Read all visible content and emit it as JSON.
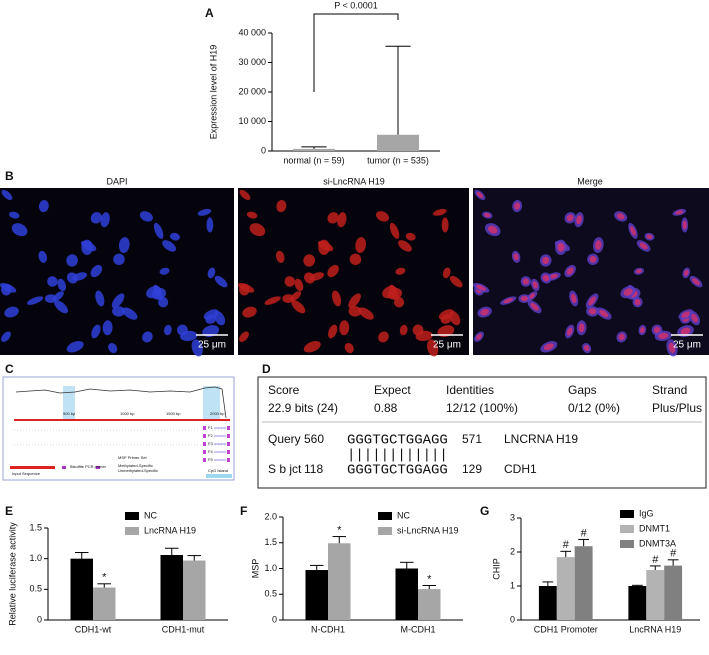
{
  "chart_data": [
    {
      "type": "bar",
      "panel": "A",
      "ylabel": "Expression level of H19",
      "annotation": "P < 0.0001",
      "categories": [
        "normal (n = 59)",
        "tumor (n = 535)"
      ],
      "series": [
        {
          "color": "#a6a6a6",
          "values": [
            700,
            5500
          ],
          "errors": [
            700,
            30000
          ]
        }
      ],
      "ylim": [
        0,
        40000
      ],
      "yticks": [
        0,
        {
          "value": 10000,
          "label": "10 000"
        },
        {
          "value": 20000,
          "label": "20 000"
        },
        {
          "value": 30000,
          "label": "30 000"
        },
        {
          "value": 40000,
          "label": "40 000"
        }
      ]
    },
    {
      "type": "bar",
      "panel": "E",
      "ylabel": "Relative luciferase activity",
      "categories": [
        "CDH1-wt",
        "CDH1-mut"
      ],
      "series": [
        {
          "name": "NC",
          "color": "#000000",
          "values": [
            1.0,
            1.06
          ],
          "errors": [
            0.1,
            0.11
          ]
        },
        {
          "name": "LncRNA H19",
          "color": "#a6a6a6",
          "values": [
            0.53,
            0.97
          ],
          "errors": [
            0.06,
            0.08
          ],
          "marks": [
            "*",
            null
          ]
        }
      ],
      "ylim": [
        0,
        1.5
      ],
      "yticks": [
        0,
        0.5,
        {
          "value": 1,
          "label": "1.0"
        },
        1.5
      ]
    },
    {
      "type": "bar",
      "panel": "F",
      "ylabel": "MSP",
      "categories": [
        "N-CDH1",
        "M-CDH1"
      ],
      "series": [
        {
          "name": "NC",
          "color": "#000000",
          "values": [
            0.97,
            1.0
          ],
          "errors": [
            0.09,
            0.12
          ]
        },
        {
          "name": "si-LncRNA H19",
          "color": "#a6a6a6",
          "values": [
            1.49,
            0.6
          ],
          "errors": [
            0.13,
            0.07
          ],
          "marks": [
            "*",
            "*"
          ]
        }
      ],
      "ylim": [
        0,
        2
      ],
      "yticks": [
        0,
        0.5,
        {
          "value": 1,
          "label": "1.0"
        },
        1.5,
        {
          "value": 2,
          "label": "2.0"
        }
      ]
    },
    {
      "type": "bar",
      "panel": "G",
      "ylabel": "CHIP",
      "categories": [
        "CDH1 Promoter",
        "LncRNA H19"
      ],
      "series": [
        {
          "name": "IgG",
          "color": "#000000",
          "values": [
            1.0,
            1.0
          ],
          "errors": [
            0.12,
            0.02
          ]
        },
        {
          "name": "DNMT1",
          "color": "#b3b3b3",
          "values": [
            1.85,
            1.47
          ],
          "errors": [
            0.17,
            0.12
          ],
          "marks": [
            "#",
            "#"
          ]
        },
        {
          "name": "DNMT3A",
          "color": "#808080",
          "values": [
            2.17,
            1.6
          ],
          "errors": [
            0.2,
            0.17
          ],
          "marks": [
            "#",
            "#"
          ]
        }
      ],
      "ylim": [
        0,
        3
      ],
      "yticks": [
        0,
        1,
        2,
        3
      ]
    }
  ],
  "images": {
    "panel": "B",
    "labels": [
      "DAPI",
      "si-LncRNA H19",
      "Merge"
    ],
    "scale": [
      "25 μm",
      "25 μm",
      "25 μm"
    ]
  },
  "browser": {
    "panel": "C",
    "scale": [
      "500 bp",
      "1000 bp",
      "1500 bp",
      "2000 bp"
    ],
    "tracks": [
      "Input Sequence",
      "Bisulfite PCR primer",
      "MSP Primer Set",
      "Methylated-Specific",
      "Unmethylated-Specific",
      "CpG Island"
    ],
    "primers": [
      "F1",
      "F2",
      "F3",
      "F4",
      "F5"
    ]
  },
  "alignment": {
    "panel": "D",
    "header": [
      "Score",
      "Expect",
      "Identities",
      "Gaps",
      "Strand"
    ],
    "values": [
      "22.9 bits (24)",
      "0.88",
      "12/12 (100%)",
      "0/12 (0%)",
      "Plus/Plus"
    ],
    "query": [
      "Query",
      "560",
      "GGGTGCTGGAGG",
      "571",
      "LNCRNA H19"
    ],
    "match": "||||||||||||",
    "subject": [
      "S b jct",
      "118",
      "GGGTGCTGGAGG",
      "129",
      "CDH1"
    ]
  }
}
